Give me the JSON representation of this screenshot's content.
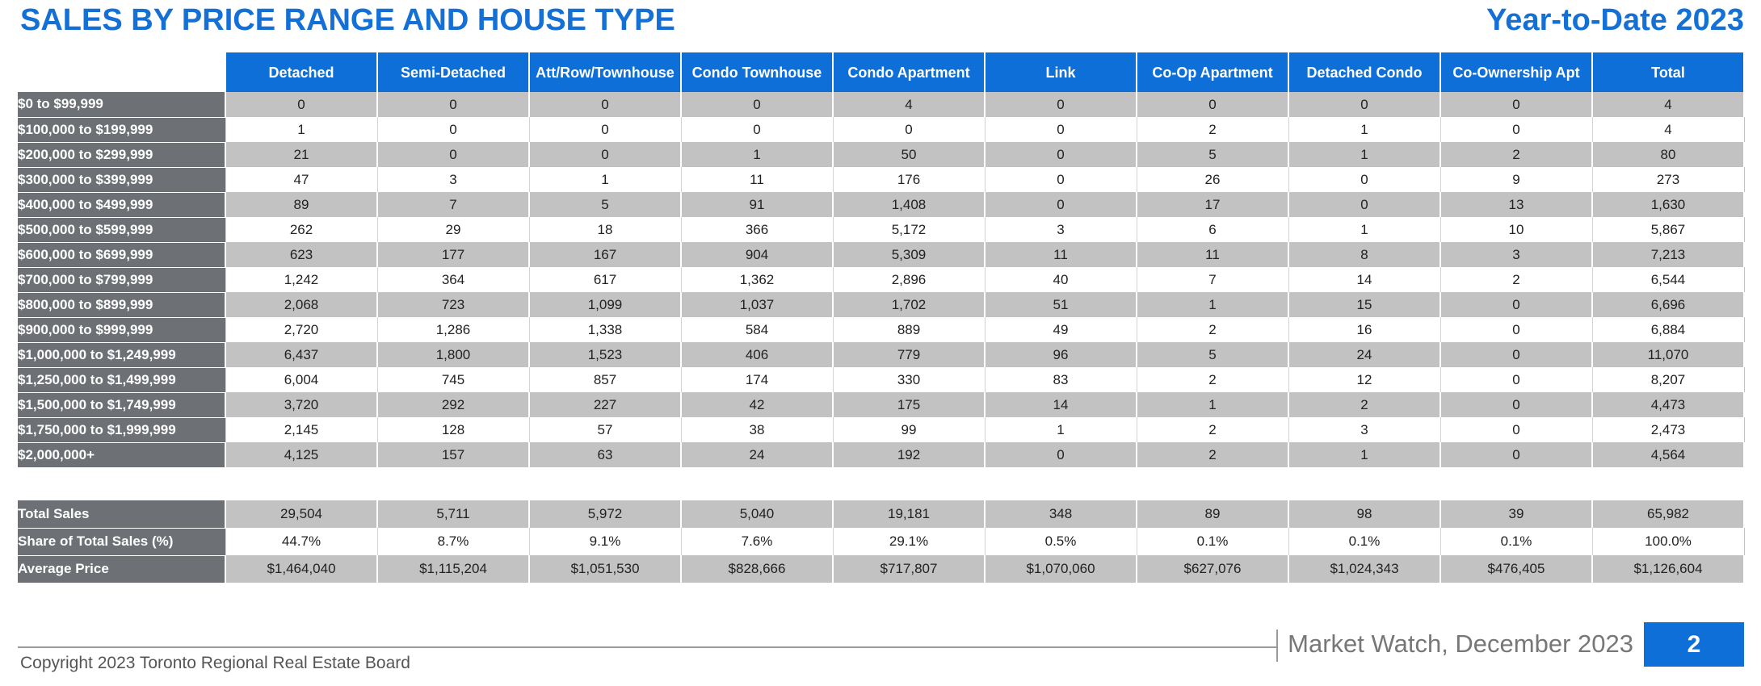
{
  "header": {
    "title": "SALES BY PRICE RANGE AND HOUSE TYPE",
    "subtitle": "Year-to-Date 2023"
  },
  "table": {
    "columns": [
      "Detached",
      "Semi-Detached",
      "Att/Row/Townhouse",
      "Condo Townhouse",
      "Condo Apartment",
      "Link",
      "Co-Op Apartment",
      "Detached Condo",
      "Co-Ownership Apt",
      "Total"
    ],
    "rows": [
      {
        "label": "$0 to $99,999",
        "values": [
          "0",
          "0",
          "0",
          "0",
          "4",
          "0",
          "0",
          "0",
          "0",
          "4"
        ]
      },
      {
        "label": "$100,000 to $199,999",
        "values": [
          "1",
          "0",
          "0",
          "0",
          "0",
          "0",
          "2",
          "1",
          "0",
          "4"
        ]
      },
      {
        "label": "$200,000 to $299,999",
        "values": [
          "21",
          "0",
          "0",
          "1",
          "50",
          "0",
          "5",
          "1",
          "2",
          "80"
        ]
      },
      {
        "label": "$300,000 to $399,999",
        "values": [
          "47",
          "3",
          "1",
          "11",
          "176",
          "0",
          "26",
          "0",
          "9",
          "273"
        ]
      },
      {
        "label": "$400,000 to $499,999",
        "values": [
          "89",
          "7",
          "5",
          "91",
          "1,408",
          "0",
          "17",
          "0",
          "13",
          "1,630"
        ]
      },
      {
        "label": "$500,000 to $599,999",
        "values": [
          "262",
          "29",
          "18",
          "366",
          "5,172",
          "3",
          "6",
          "1",
          "10",
          "5,867"
        ]
      },
      {
        "label": "$600,000 to $699,999",
        "values": [
          "623",
          "177",
          "167",
          "904",
          "5,309",
          "11",
          "11",
          "8",
          "3",
          "7,213"
        ]
      },
      {
        "label": "$700,000 to $799,999",
        "values": [
          "1,242",
          "364",
          "617",
          "1,362",
          "2,896",
          "40",
          "7",
          "14",
          "2",
          "6,544"
        ]
      },
      {
        "label": "$800,000 to $899,999",
        "values": [
          "2,068",
          "723",
          "1,099",
          "1,037",
          "1,702",
          "51",
          "1",
          "15",
          "0",
          "6,696"
        ]
      },
      {
        "label": "$900,000 to $999,999",
        "values": [
          "2,720",
          "1,286",
          "1,338",
          "584",
          "889",
          "49",
          "2",
          "16",
          "0",
          "6,884"
        ]
      },
      {
        "label": "$1,000,000 to $1,249,999",
        "values": [
          "6,437",
          "1,800",
          "1,523",
          "406",
          "779",
          "96",
          "5",
          "24",
          "0",
          "11,070"
        ]
      },
      {
        "label": "$1,250,000 to $1,499,999",
        "values": [
          "6,004",
          "745",
          "857",
          "174",
          "330",
          "83",
          "2",
          "12",
          "0",
          "8,207"
        ]
      },
      {
        "label": "$1,500,000 to $1,749,999",
        "values": [
          "3,720",
          "292",
          "227",
          "42",
          "175",
          "14",
          "1",
          "2",
          "0",
          "4,473"
        ]
      },
      {
        "label": "$1,750,000 to $1,999,999",
        "values": [
          "2,145",
          "128",
          "57",
          "38",
          "99",
          "1",
          "2",
          "3",
          "0",
          "2,473"
        ]
      },
      {
        "label": "$2,000,000+",
        "values": [
          "4,125",
          "157",
          "63",
          "24",
          "192",
          "0",
          "2",
          "1",
          "0",
          "4,564"
        ]
      }
    ]
  },
  "summary": {
    "rows": [
      {
        "label": "Total Sales",
        "values": [
          "29,504",
          "5,711",
          "5,972",
          "5,040",
          "19,181",
          "348",
          "89",
          "98",
          "39",
          "65,982"
        ]
      },
      {
        "label": "Share of Total Sales (%)",
        "values": [
          "44.7%",
          "8.7%",
          "9.1%",
          "7.6%",
          "29.1%",
          "0.5%",
          "0.1%",
          "0.1%",
          "0.1%",
          "100.0%"
        ]
      },
      {
        "label": "Average Price",
        "values": [
          "$1,464,040",
          "$1,115,204",
          "$1,051,530",
          "$828,666",
          "$717,807",
          "$1,070,060",
          "$627,076",
          "$1,024,343",
          "$476,405",
          "$1,126,604"
        ]
      }
    ]
  },
  "footer": {
    "copyright": "Copyright 2023 Toronto Regional Real Estate Board",
    "publication": "Market Watch, December 2023",
    "page_number": "2"
  },
  "colors": {
    "accent_blue": "#1570d6",
    "row_header_gray": "#6d7074",
    "stripe_gray": "#c2c2c2"
  }
}
